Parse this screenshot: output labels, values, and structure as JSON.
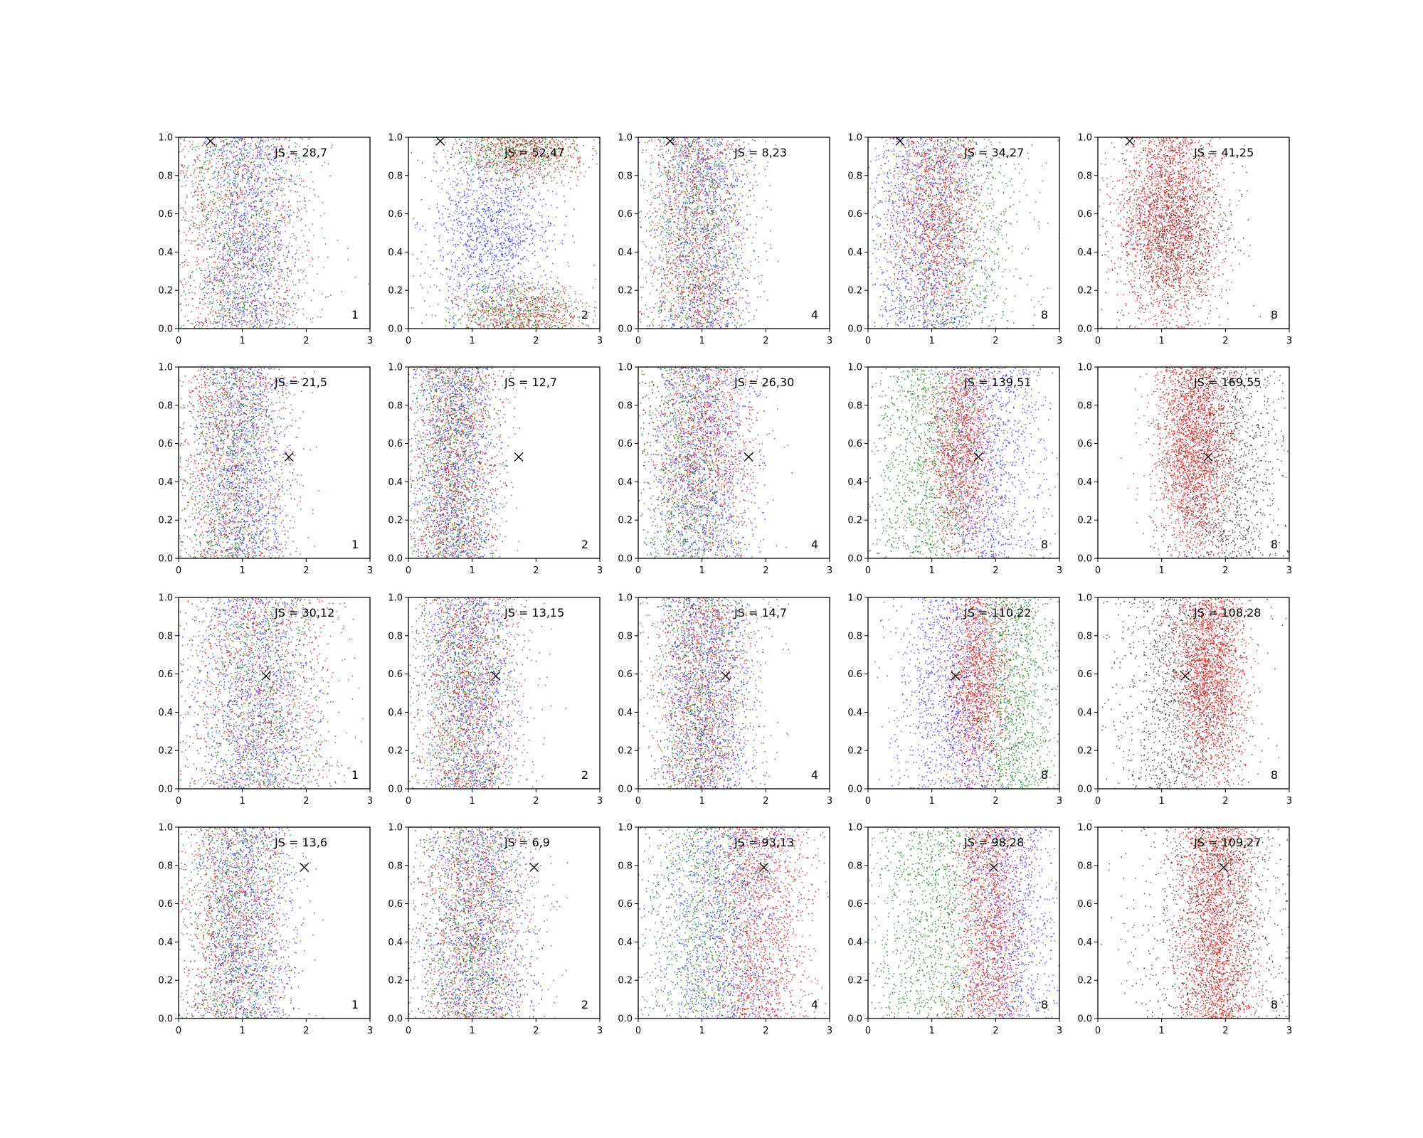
{
  "figure": {
    "rows": 4,
    "cols": 5
  },
  "colors": {
    "blue": "#3b3bff",
    "green": "#1a8a1a",
    "red": "#e8201c",
    "black": "#333333",
    "marker": "#000000"
  },
  "chart_data": [
    {
      "type": "scatter",
      "row": 0,
      "col": 0,
      "annotation": "JS = 28,7",
      "corner_label": "1",
      "marker": {
        "x": 0.5,
        "y": 0.98
      },
      "xlim": [
        0,
        3
      ],
      "ylim": [
        0,
        1
      ],
      "xticks": [
        "0",
        "1",
        "2",
        "3"
      ],
      "yticks": [
        "0.0",
        "0.2",
        "0.4",
        "0.6",
        "0.8",
        "1.0"
      ],
      "series": [
        {
          "color": "blue",
          "cx": 1.1,
          "sx": 0.4,
          "profile": "uniform",
          "n": 1300
        },
        {
          "color": "green",
          "cx": 0.9,
          "sx": 0.55,
          "profile": "uniform",
          "n": 900
        },
        {
          "color": "red",
          "cx": 0.9,
          "sx": 0.6,
          "profile": "uniform",
          "n": 900
        }
      ]
    },
    {
      "type": "scatter",
      "row": 0,
      "col": 1,
      "annotation": "JS = 52,47",
      "corner_label": "2",
      "marker": {
        "x": 0.5,
        "y": 0.98
      },
      "xlim": [
        0,
        3
      ],
      "ylim": [
        0,
        1
      ],
      "xticks": [
        "0",
        "1",
        "2",
        "3"
      ],
      "yticks": [
        "0.0",
        "0.2",
        "0.4",
        "0.6",
        "0.8",
        "1.0"
      ],
      "series": [
        {
          "color": "blue",
          "cx": 1.3,
          "sx": 0.45,
          "profile": "center",
          "n": 1400
        },
        {
          "color": "green",
          "cx": 1.7,
          "sx": 0.55,
          "profile": "edges",
          "n": 1000
        },
        {
          "color": "red",
          "cx": 1.8,
          "sx": 0.5,
          "profile": "edges",
          "n": 1000
        }
      ]
    },
    {
      "type": "scatter",
      "row": 0,
      "col": 2,
      "annotation": "JS = 8,23",
      "corner_label": "4",
      "marker": {
        "x": 0.5,
        "y": 0.98
      },
      "xlim": [
        0,
        3
      ],
      "ylim": [
        0,
        1
      ],
      "xticks": [
        "0",
        "1",
        "2",
        "3"
      ],
      "yticks": [
        "0.0",
        "0.2",
        "0.4",
        "0.6",
        "0.8",
        "1.0"
      ],
      "series": [
        {
          "color": "blue",
          "cx": 1.0,
          "sx": 0.4,
          "profile": "uniform",
          "n": 1200
        },
        {
          "color": "green",
          "cx": 0.9,
          "sx": 0.45,
          "profile": "uniform",
          "n": 1000
        },
        {
          "color": "red",
          "cx": 0.9,
          "sx": 0.4,
          "profile": "uniform",
          "n": 1000
        }
      ]
    },
    {
      "type": "scatter",
      "row": 0,
      "col": 3,
      "annotation": "JS = 34,27",
      "corner_label": "8",
      "marker": {
        "x": 0.5,
        "y": 0.98
      },
      "xlim": [
        0,
        3
      ],
      "ylim": [
        0,
        1
      ],
      "xticks": [
        "0",
        "1",
        "2",
        "3"
      ],
      "yticks": [
        "0.0",
        "0.2",
        "0.4",
        "0.6",
        "0.8",
        "1.0"
      ],
      "series": [
        {
          "color": "blue",
          "cx": 0.9,
          "sx": 0.45,
          "profile": "uniform",
          "n": 1300
        },
        {
          "color": "green",
          "cx": 1.4,
          "sx": 0.55,
          "profile": "uniform",
          "n": 900
        },
        {
          "color": "red",
          "cx": 1.1,
          "sx": 0.35,
          "profile": "high",
          "n": 1200
        }
      ]
    },
    {
      "type": "scatter",
      "row": 0,
      "col": 4,
      "annotation": "JS = 41,25",
      "corner_label": "8",
      "marker": {
        "x": 0.5,
        "y": 0.98
      },
      "xlim": [
        0,
        3
      ],
      "ylim": [
        0,
        1
      ],
      "xticks": [
        "0",
        "1",
        "2",
        "3"
      ],
      "yticks": [
        "0.0",
        "0.2",
        "0.4",
        "0.6",
        "0.8",
        "1.0"
      ],
      "series": [
        {
          "color": "black",
          "cx": 1.2,
          "sx": 0.45,
          "profile": "center",
          "n": 1000
        },
        {
          "color": "red",
          "cx": 1.1,
          "sx": 0.4,
          "profile": "high",
          "n": 2200
        }
      ]
    },
    {
      "type": "scatter",
      "row": 1,
      "col": 0,
      "annotation": "JS = 21,5",
      "corner_label": "1",
      "marker": {
        "x": 1.73,
        "y": 0.53
      },
      "xlim": [
        0,
        3
      ],
      "ylim": [
        0,
        1
      ],
      "xticks": [
        "0",
        "1",
        "2",
        "3"
      ],
      "yticks": [
        "0.0",
        "0.2",
        "0.4",
        "0.6",
        "0.8",
        "1.0"
      ],
      "series": [
        {
          "color": "blue",
          "cx": 1.0,
          "sx": 0.35,
          "profile": "uniform",
          "n": 1300
        },
        {
          "color": "green",
          "cx": 0.8,
          "sx": 0.45,
          "profile": "uniform",
          "n": 900
        },
        {
          "color": "red",
          "cx": 0.8,
          "sx": 0.5,
          "profile": "uniform",
          "n": 900
        }
      ]
    },
    {
      "type": "scatter",
      "row": 1,
      "col": 1,
      "annotation": "JS = 12,7",
      "corner_label": "2",
      "marker": {
        "x": 1.73,
        "y": 0.53
      },
      "xlim": [
        0,
        3
      ],
      "ylim": [
        0,
        1
      ],
      "xticks": [
        "0",
        "1",
        "2",
        "3"
      ],
      "yticks": [
        "0.0",
        "0.2",
        "0.4",
        "0.6",
        "0.8",
        "1.0"
      ],
      "series": [
        {
          "color": "blue",
          "cx": 0.75,
          "sx": 0.35,
          "profile": "uniform",
          "n": 1300
        },
        {
          "color": "green",
          "cx": 0.7,
          "sx": 0.35,
          "profile": "uniform",
          "n": 1000
        },
        {
          "color": "red",
          "cx": 0.7,
          "sx": 0.35,
          "profile": "uniform",
          "n": 1000
        }
      ]
    },
    {
      "type": "scatter",
      "row": 1,
      "col": 2,
      "annotation": "JS = 26,30",
      "corner_label": "4",
      "marker": {
        "x": 1.73,
        "y": 0.53
      },
      "xlim": [
        0,
        3
      ],
      "ylim": [
        0,
        1
      ],
      "xticks": [
        "0",
        "1",
        "2",
        "3"
      ],
      "yticks": [
        "0.0",
        "0.2",
        "0.4",
        "0.6",
        "0.8",
        "1.0"
      ],
      "series": [
        {
          "color": "blue",
          "cx": 1.0,
          "sx": 0.45,
          "profile": "uniform",
          "n": 1300
        },
        {
          "color": "green",
          "cx": 0.8,
          "sx": 0.4,
          "profile": "uniform",
          "n": 900
        },
        {
          "color": "red",
          "cx": 1.0,
          "sx": 0.4,
          "profile": "high",
          "n": 1000
        }
      ]
    },
    {
      "type": "scatter",
      "row": 1,
      "col": 3,
      "annotation": "JS = 139,51",
      "corner_label": "8",
      "marker": {
        "x": 1.73,
        "y": 0.53
      },
      "xlim": [
        0,
        3
      ],
      "ylim": [
        0,
        1
      ],
      "xticks": [
        "0",
        "1",
        "2",
        "3"
      ],
      "yticks": [
        "0.0",
        "0.2",
        "0.4",
        "0.6",
        "0.8",
        "1.0"
      ],
      "series": [
        {
          "color": "blue",
          "cx": 1.9,
          "sx": 0.45,
          "profile": "uniform",
          "n": 1200
        },
        {
          "color": "green",
          "cx": 0.9,
          "sx": 0.45,
          "profile": "uniform",
          "n": 1200
        },
        {
          "color": "red",
          "cx": 1.45,
          "sx": 0.25,
          "profile": "high",
          "n": 1300
        }
      ]
    },
    {
      "type": "scatter",
      "row": 1,
      "col": 4,
      "annotation": "JS = 169,55",
      "corner_label": "8",
      "marker": {
        "x": 1.73,
        "y": 0.53
      },
      "xlim": [
        0,
        3
      ],
      "ylim": [
        0,
        1
      ],
      "xticks": [
        "0",
        "1",
        "2",
        "3"
      ],
      "yticks": [
        "0.0",
        "0.2",
        "0.4",
        "0.6",
        "0.8",
        "1.0"
      ],
      "series": [
        {
          "color": "black",
          "cx": 2.0,
          "sx": 0.45,
          "profile": "uniform",
          "n": 1300
        },
        {
          "color": "red",
          "cx": 1.5,
          "sx": 0.3,
          "profile": "high",
          "n": 2200
        }
      ]
    },
    {
      "type": "scatter",
      "row": 2,
      "col": 0,
      "annotation": "JS = 30,12",
      "corner_label": "1",
      "marker": {
        "x": 1.37,
        "y": 0.59
      },
      "xlim": [
        0,
        3
      ],
      "ylim": [
        0,
        1
      ],
      "xticks": [
        "0",
        "1",
        "2",
        "3"
      ],
      "yticks": [
        "0.0",
        "0.2",
        "0.4",
        "0.6",
        "0.8",
        "1.0"
      ],
      "series": [
        {
          "color": "blue",
          "cx": 1.2,
          "sx": 0.5,
          "profile": "uniform",
          "n": 1300
        },
        {
          "color": "green",
          "cx": 1.3,
          "sx": 0.55,
          "profile": "uniform",
          "n": 900
        },
        {
          "color": "red",
          "cx": 1.2,
          "sx": 0.6,
          "profile": "uniform",
          "n": 900
        }
      ]
    },
    {
      "type": "scatter",
      "row": 2,
      "col": 1,
      "annotation": "JS = 13,15",
      "corner_label": "2",
      "marker": {
        "x": 1.37,
        "y": 0.59
      },
      "xlim": [
        0,
        3
      ],
      "ylim": [
        0,
        1
      ],
      "xticks": [
        "0",
        "1",
        "2",
        "3"
      ],
      "yticks": [
        "0.0",
        "0.2",
        "0.4",
        "0.6",
        "0.8",
        "1.0"
      ],
      "series": [
        {
          "color": "blue",
          "cx": 1.0,
          "sx": 0.4,
          "profile": "uniform",
          "n": 1300
        },
        {
          "color": "green",
          "cx": 0.85,
          "sx": 0.4,
          "profile": "uniform",
          "n": 900
        },
        {
          "color": "red",
          "cx": 0.95,
          "sx": 0.4,
          "profile": "uniform",
          "n": 1000
        }
      ]
    },
    {
      "type": "scatter",
      "row": 2,
      "col": 2,
      "annotation": "JS = 14,7",
      "corner_label": "4",
      "marker": {
        "x": 1.37,
        "y": 0.59
      },
      "xlim": [
        0,
        3
      ],
      "ylim": [
        0,
        1
      ],
      "xticks": [
        "0",
        "1",
        "2",
        "3"
      ],
      "yticks": [
        "0.0",
        "0.2",
        "0.4",
        "0.6",
        "0.8",
        "1.0"
      ],
      "series": [
        {
          "color": "blue",
          "cx": 1.05,
          "sx": 0.4,
          "profile": "uniform",
          "n": 1300
        },
        {
          "color": "green",
          "cx": 1.0,
          "sx": 0.4,
          "profile": "uniform",
          "n": 900
        },
        {
          "color": "red",
          "cx": 1.0,
          "sx": 0.35,
          "profile": "uniform",
          "n": 1000
        }
      ]
    },
    {
      "type": "scatter",
      "row": 2,
      "col": 3,
      "annotation": "JS = 110,22",
      "corner_label": "8",
      "marker": {
        "x": 1.37,
        "y": 0.59
      },
      "xlim": [
        0,
        3
      ],
      "ylim": [
        0,
        1
      ],
      "xticks": [
        "0",
        "1",
        "2",
        "3"
      ],
      "yticks": [
        "0.0",
        "0.2",
        "0.4",
        "0.6",
        "0.8",
        "1.0"
      ],
      "series": [
        {
          "color": "blue",
          "cx": 1.3,
          "sx": 0.45,
          "profile": "uniform",
          "n": 1300
        },
        {
          "color": "green",
          "cx": 2.3,
          "sx": 0.35,
          "profile": "uniform",
          "n": 1200
        },
        {
          "color": "red",
          "cx": 1.7,
          "sx": 0.25,
          "profile": "high",
          "n": 1400
        }
      ]
    },
    {
      "type": "scatter",
      "row": 2,
      "col": 4,
      "annotation": "JS = 108,28",
      "corner_label": "8",
      "marker": {
        "x": 1.37,
        "y": 0.59
      },
      "xlim": [
        0,
        3
      ],
      "ylim": [
        0,
        1
      ],
      "xticks": [
        "0",
        "1",
        "2",
        "3"
      ],
      "yticks": [
        "0.0",
        "0.2",
        "0.4",
        "0.6",
        "0.8",
        "1.0"
      ],
      "series": [
        {
          "color": "black",
          "cx": 1.3,
          "sx": 0.55,
          "profile": "uniform",
          "n": 1300
        },
        {
          "color": "red",
          "cx": 1.75,
          "sx": 0.28,
          "profile": "high",
          "n": 2100
        }
      ]
    },
    {
      "type": "scatter",
      "row": 3,
      "col": 0,
      "annotation": "JS = 13,6",
      "corner_label": "1",
      "marker": {
        "x": 1.97,
        "y": 0.79
      },
      "xlim": [
        0,
        3
      ],
      "ylim": [
        0,
        1
      ],
      "xticks": [
        "0",
        "1",
        "2",
        "3"
      ],
      "yticks": [
        "0.0",
        "0.2",
        "0.4",
        "0.6",
        "0.8",
        "1.0"
      ],
      "series": [
        {
          "color": "blue",
          "cx": 1.05,
          "sx": 0.4,
          "profile": "uniform",
          "n": 1300
        },
        {
          "color": "green",
          "cx": 0.85,
          "sx": 0.4,
          "profile": "uniform",
          "n": 900
        },
        {
          "color": "red",
          "cx": 0.85,
          "sx": 0.45,
          "profile": "uniform",
          "n": 900
        }
      ]
    },
    {
      "type": "scatter",
      "row": 3,
      "col": 1,
      "annotation": "JS = 6,9",
      "corner_label": "2",
      "marker": {
        "x": 1.97,
        "y": 0.79
      },
      "xlim": [
        0,
        3
      ],
      "ylim": [
        0,
        1
      ],
      "xticks": [
        "0",
        "1",
        "2",
        "3"
      ],
      "yticks": [
        "0.0",
        "0.2",
        "0.4",
        "0.6",
        "0.8",
        "1.0"
      ],
      "series": [
        {
          "color": "blue",
          "cx": 1.1,
          "sx": 0.45,
          "profile": "uniform",
          "n": 1300
        },
        {
          "color": "green",
          "cx": 1.0,
          "sx": 0.45,
          "profile": "uniform",
          "n": 1000
        },
        {
          "color": "red",
          "cx": 1.0,
          "sx": 0.45,
          "profile": "uniform",
          "n": 1000
        }
      ]
    },
    {
      "type": "scatter",
      "row": 3,
      "col": 2,
      "annotation": "JS = 93,13",
      "corner_label": "4",
      "marker": {
        "x": 1.97,
        "y": 0.79
      },
      "xlim": [
        0,
        3
      ],
      "ylim": [
        0,
        1
      ],
      "xticks": [
        "0",
        "1",
        "2",
        "3"
      ],
      "yticks": [
        "0.0",
        "0.2",
        "0.4",
        "0.6",
        "0.8",
        "1.0"
      ],
      "series": [
        {
          "color": "blue",
          "cx": 1.4,
          "sx": 0.55,
          "profile": "uniform",
          "n": 1300
        },
        {
          "color": "green",
          "cx": 1.0,
          "sx": 0.5,
          "profile": "uniform",
          "n": 1000
        },
        {
          "color": "red",
          "cx": 1.9,
          "sx": 0.4,
          "profile": "uniform",
          "n": 1300
        }
      ]
    },
    {
      "type": "scatter",
      "row": 3,
      "col": 3,
      "annotation": "JS = 98,28",
      "corner_label": "8",
      "marker": {
        "x": 1.97,
        "y": 0.79
      },
      "xlim": [
        0,
        3
      ],
      "ylim": [
        0,
        1
      ],
      "xticks": [
        "0",
        "1",
        "2",
        "3"
      ],
      "yticks": [
        "0.0",
        "0.2",
        "0.4",
        "0.6",
        "0.8",
        "1.0"
      ],
      "series": [
        {
          "color": "blue",
          "cx": 2.2,
          "sx": 0.4,
          "profile": "uniform",
          "n": 1100
        },
        {
          "color": "green",
          "cx": 1.0,
          "sx": 0.5,
          "profile": "uniform",
          "n": 1200
        },
        {
          "color": "red",
          "cx": 1.9,
          "sx": 0.28,
          "profile": "uniform",
          "n": 1400
        }
      ]
    },
    {
      "type": "scatter",
      "row": 3,
      "col": 4,
      "annotation": "JS = 109,27",
      "corner_label": "8",
      "marker": {
        "x": 1.97,
        "y": 0.79
      },
      "xlim": [
        0,
        3
      ],
      "ylim": [
        0,
        1
      ],
      "xticks": [
        "0",
        "1",
        "2",
        "3"
      ],
      "yticks": [
        "0.0",
        "0.2",
        "0.4",
        "0.6",
        "0.8",
        "1.0"
      ],
      "series": [
        {
          "color": "black",
          "cx": 1.85,
          "sx": 0.6,
          "profile": "uniform",
          "n": 1200
        },
        {
          "color": "red",
          "cx": 1.85,
          "sx": 0.3,
          "profile": "uniform",
          "n": 2100
        }
      ]
    }
  ]
}
